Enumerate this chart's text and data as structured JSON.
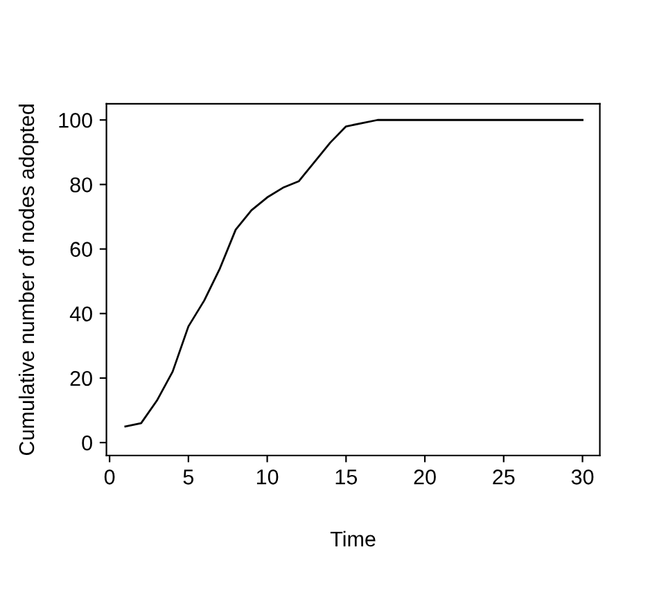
{
  "chart_data": {
    "type": "line",
    "xlabel": "Time",
    "ylabel": "Cumulative number of nodes adopted",
    "x": [
      1,
      2,
      3,
      4,
      5,
      6,
      7,
      8,
      9,
      10,
      11,
      12,
      13,
      14,
      15,
      16,
      17,
      18,
      19,
      20,
      21,
      22,
      23,
      24,
      25,
      26,
      27,
      28,
      29,
      30
    ],
    "series": [
      {
        "color": "#000000",
        "values": [
          5,
          6,
          13,
          22,
          36,
          44,
          54,
          66,
          72,
          76,
          79,
          81,
          87,
          93,
          98,
          99,
          100,
          100,
          100,
          100,
          100,
          100,
          100,
          100,
          100,
          100,
          100,
          100,
          100,
          100
        ]
      }
    ],
    "xlim": [
      -0.2,
      31.1
    ],
    "ylim": [
      -4,
      105
    ],
    "xticks": [
      0,
      5,
      10,
      15,
      20,
      25,
      30
    ],
    "yticks": [
      0,
      20,
      40,
      60,
      80,
      100
    ],
    "grid": false,
    "legend": false,
    "marker": "none",
    "line_style": "solid"
  }
}
